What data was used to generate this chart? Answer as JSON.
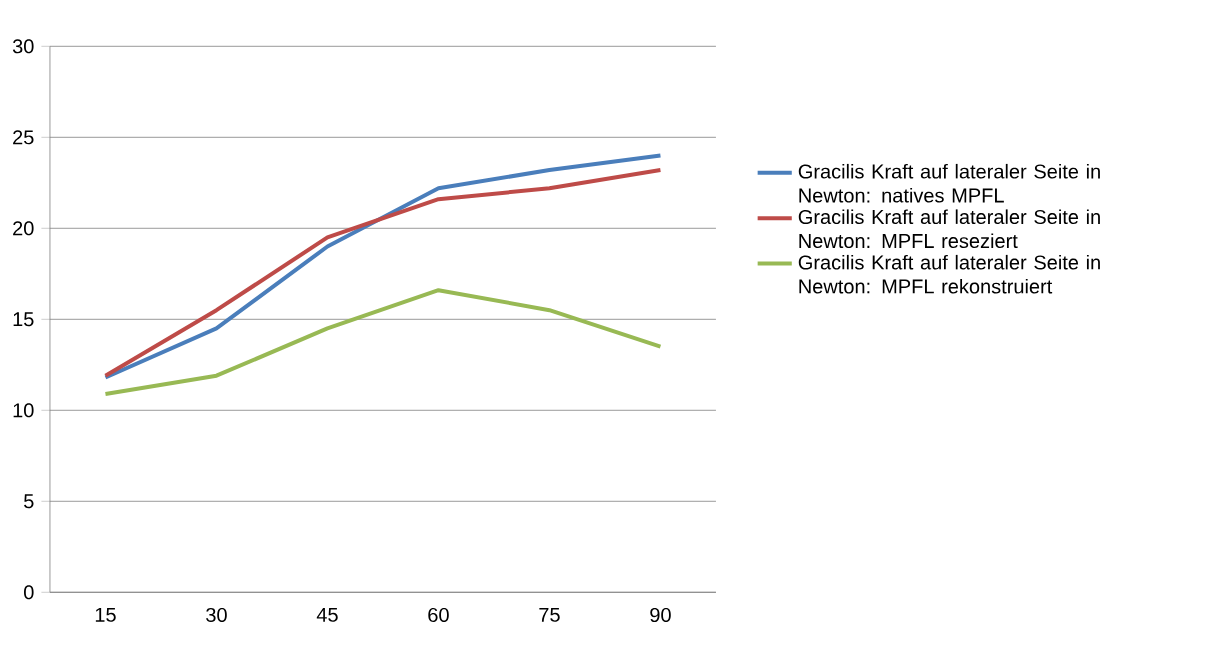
{
  "chart_data": {
    "type": "line",
    "categories": [
      "15",
      "30",
      "45",
      "60",
      "75",
      "90"
    ],
    "series": [
      {
        "name": "Gracilis Kraft auf lateraler Seite in Newton: natives MPFL",
        "color": "#4a7ebb",
        "values": [
          11.8,
          14.5,
          19.0,
          22.2,
          23.2,
          24.0
        ]
      },
      {
        "name": "Gracilis Kraft auf lateraler Seite in Newton: MPFL reseziert",
        "color": "#be4b48",
        "values": [
          11.9,
          15.5,
          19.5,
          21.6,
          22.2,
          23.2
        ]
      },
      {
        "name": "Gracilis Kraft auf lateraler Seite in Newton: MPFL rekonstruiert",
        "color": "#98b954",
        "values": [
          10.9,
          11.9,
          14.5,
          16.6,
          15.5,
          13.5
        ]
      }
    ],
    "ylim": [
      0,
      30
    ],
    "yticks": [
      0,
      5,
      10,
      15,
      20,
      25,
      30
    ],
    "grid": "y",
    "legend": "right",
    "marker": "none"
  }
}
